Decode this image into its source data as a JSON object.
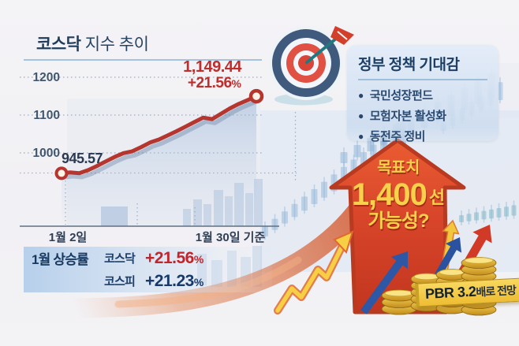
{
  "title": {
    "emph": "코스닥",
    "rest": " 지수 추이"
  },
  "chart": {
    "y_ticks": [
      "1200",
      "1100",
      "1000"
    ],
    "x_tick_left": "1월 2일",
    "x_tick_right": "1월 30일 기준",
    "start_label": "945.57",
    "end_value": "1,149.44",
    "end_change": "+21.56",
    "end_change_unit": "%"
  },
  "chart_data": {
    "type": "line",
    "title": "코스닥 지수 추이",
    "series": [
      {
        "name": "코스닥",
        "values": [
          945.57,
          948,
          946,
          954,
          965,
          977,
          989,
          999,
          1004,
          1015,
          1027,
          1035,
          1046,
          1057,
          1069,
          1081,
          1093,
          1089,
          1103,
          1117,
          1129,
          1139,
          1149.44
        ]
      }
    ],
    "x_labels": [
      "1월 2일",
      "1월 30일 기준"
    ],
    "ylim": [
      900,
      1250
    ],
    "y_ticks": [
      1200,
      1100,
      1000
    ],
    "grid": "dotted-horizontal",
    "line_color": "#b5362f",
    "start_value": 945.57,
    "end_value": 1149.44,
    "change_pct": "+21.56%"
  },
  "policy": {
    "title": "정부 정책 기대감",
    "bullet_char": "●",
    "items": [
      "국민성장펀드",
      "모험자본 활성화",
      "동전주 정비"
    ]
  },
  "target": {
    "line1": "목표치",
    "value": "1,400",
    "suffix": "선",
    "line2": "가능성?"
  },
  "rates": {
    "title": "1월 상승률",
    "rows": [
      {
        "label": "코스닥",
        "value": "+21.56",
        "unit": "%"
      },
      {
        "label": "코스피",
        "value": "+21.23",
        "unit": "%"
      }
    ]
  },
  "pbr": {
    "lead": "PBR 3.2",
    "tail": "배로 전망"
  },
  "icons": {
    "dartboard": "dartboard-icon",
    "dart": "dart-arrow-icon",
    "coins": "coin-stacks-icon",
    "big_arrow": "up-arrow-icon",
    "candles": "candlestick-decoration"
  },
  "colors": {
    "line_red": "#b5362f",
    "value_red": "#c2242b",
    "navy": "#17396b",
    "slate": "#41566f",
    "arrow_red": "#d6432a",
    "gold_text": "#f8d14b",
    "panel_blue": "#d4e1f1",
    "coin_gold": "#e9bd37"
  }
}
